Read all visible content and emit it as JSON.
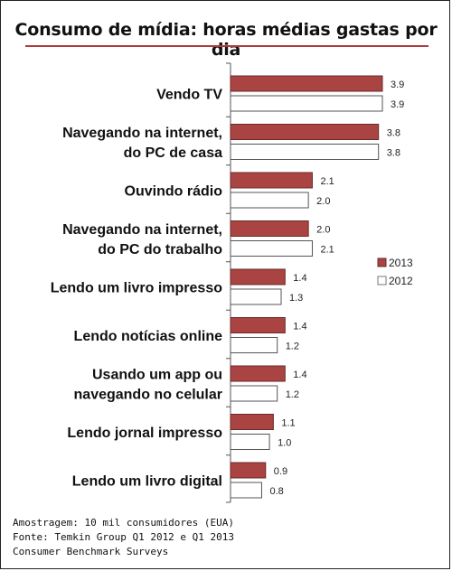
{
  "chart_data": {
    "type": "bar",
    "orientation": "horizontal",
    "title": "Consumo de mídia: horas médias gastas por dia",
    "categories": [
      [
        "Vendo TV"
      ],
      [
        "Navegando na internet,",
        "do PC de casa"
      ],
      [
        "Ouvindo rádio"
      ],
      [
        "Navegando na internet,",
        "do PC do trabalho"
      ],
      [
        "Lendo um livro impresso"
      ],
      [
        "Lendo notícias online"
      ],
      [
        "Usando um app ou",
        "navegando no celular"
      ],
      [
        "Lendo jornal impresso"
      ],
      [
        "Lendo um livro digital"
      ]
    ],
    "series": [
      {
        "name": "2013",
        "color": "#a94442",
        "values": [
          3.9,
          3.8,
          2.1,
          2.0,
          1.4,
          1.4,
          1.4,
          1.1,
          0.9
        ]
      },
      {
        "name": "2012",
        "color": "#ffffff",
        "values": [
          3.9,
          3.8,
          2.0,
          2.1,
          1.3,
          1.2,
          1.2,
          1.0,
          0.8
        ]
      }
    ],
    "xlim": [
      0,
      4.3
    ],
    "legend_position": "right",
    "grid": false
  },
  "notes": [
    "Amostragem: 10 mil consumidores (EUA)",
    "Fonte: Temkin Group Q1 2012 e Q1 2013",
    "Consumer Benchmark Surveys"
  ]
}
